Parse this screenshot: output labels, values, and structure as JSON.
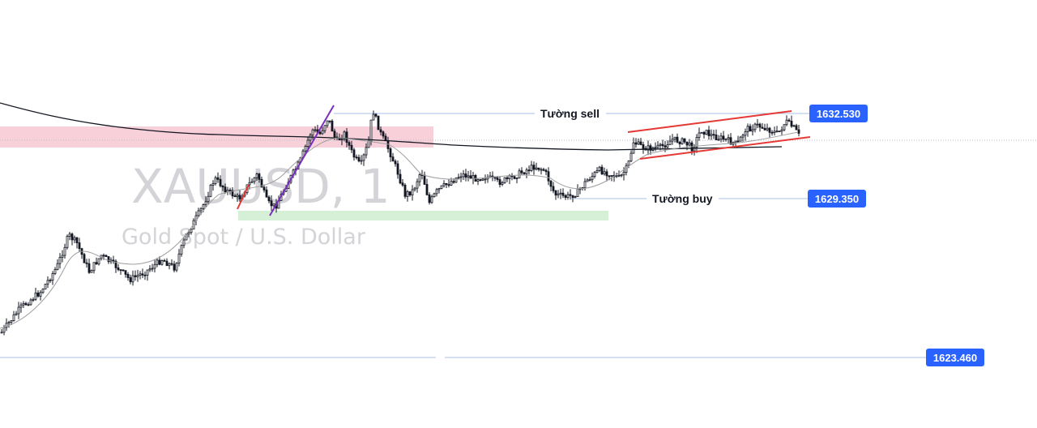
{
  "chart_data": {
    "type": "candlestick",
    "symbol": "XAUUSD",
    "interval": "1",
    "watermark": {
      "symbol_text": "XAUUSD, 1",
      "description": "Gold Spot / U.S. Dollar"
    },
    "y_range": [
      1621.6,
      1634.8
    ],
    "price_levels": [
      {
        "label": "Tường sell",
        "price": "1632.530",
        "value": 1632.53
      },
      {
        "label": "Tường buy",
        "price": "1629.350",
        "value": 1629.35
      },
      {
        "label": "",
        "price": "1623.460",
        "value": 1623.46
      }
    ],
    "zones": [
      {
        "type": "resistance",
        "from": 1631.6,
        "to": 1632.3,
        "color": "#f8d0da"
      },
      {
        "type": "support",
        "from": 1628.3,
        "to": 1628.65,
        "color": "#d6efd7"
      }
    ],
    "moving_averages": [
      {
        "color": "#131722",
        "role": "long"
      },
      {
        "color": "#9e9e9e",
        "role": "short"
      }
    ],
    "channel": {
      "type": "ascending",
      "color": "#e53935"
    },
    "impulse_lines": [
      {
        "color": "#e53935"
      },
      {
        "color": "#7b2fbe"
      }
    ],
    "colors": {
      "candle": "#131722",
      "level_line": "#a9bfe6",
      "price_tag": "#2962ff",
      "grid": "#e0e3eb"
    }
  }
}
